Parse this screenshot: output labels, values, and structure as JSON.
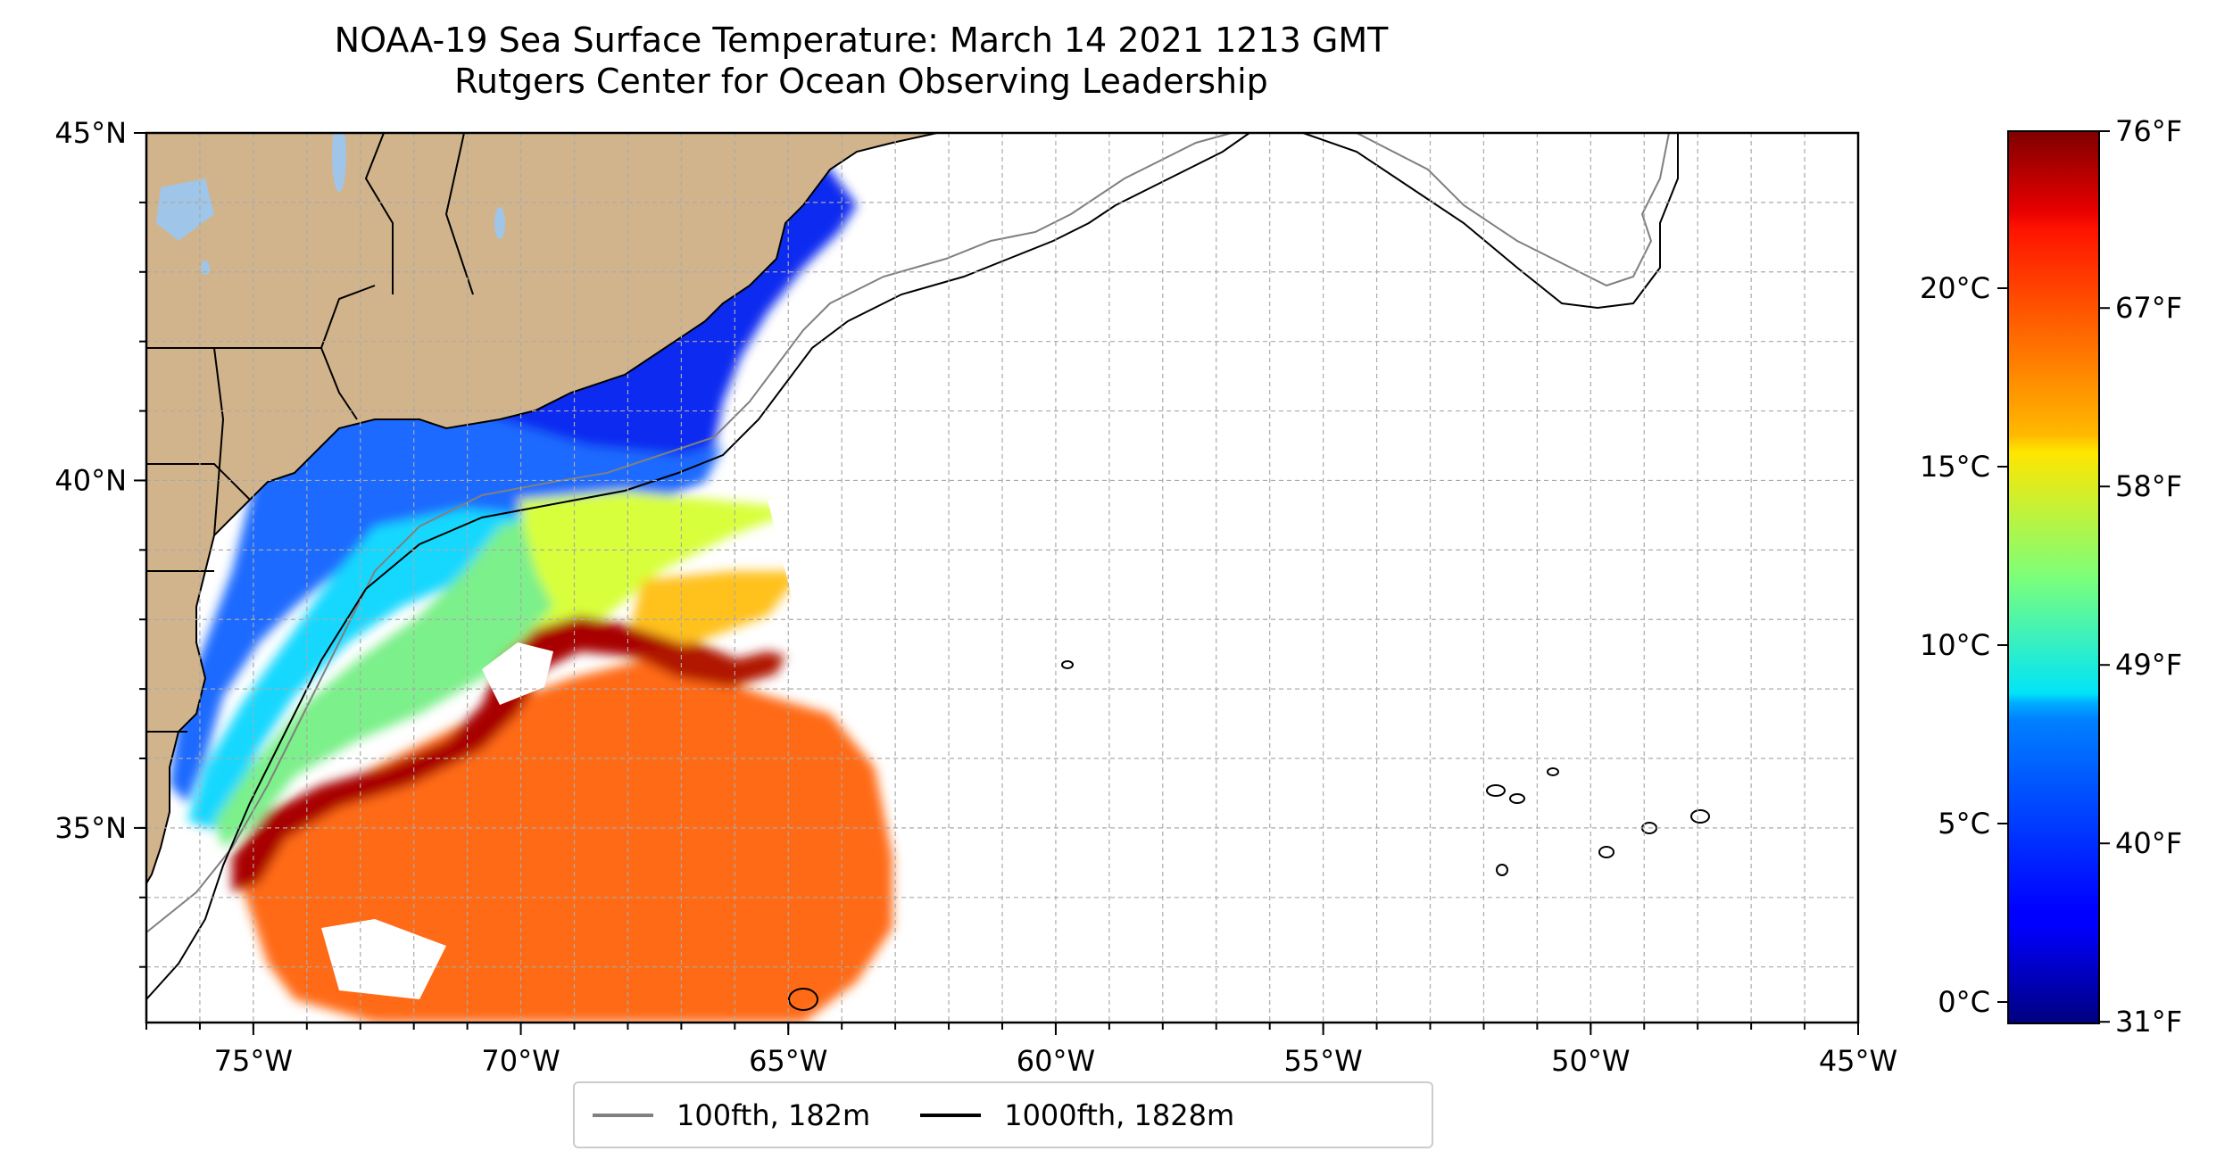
{
  "title_line1": "NOAA-19 Sea Surface Temperature: March 14 2021 1213 GMT",
  "title_line2": "Rutgers Center for Ocean Observing Leadership",
  "map": {
    "projection": "PlateCarree",
    "lon_range": [
      -77,
      -45
    ],
    "lat_range": [
      32.2,
      45
    ],
    "x_ticks": [
      "75°W",
      "70°W",
      "65°W",
      "60°W",
      "55°W",
      "50°W",
      "45°W"
    ],
    "x_tick_values": [
      -75,
      -70,
      -65,
      -60,
      -55,
      -50,
      -45
    ],
    "y_ticks": [
      "35°N",
      "40°N",
      "45°N"
    ],
    "y_tick_values": [
      35,
      40,
      45
    ],
    "gridlines": true,
    "land_color": "#d2b48c",
    "lake_color": "#9fc5e8"
  },
  "colorbar": {
    "colormap": "jet",
    "celsius_range": [
      -0.6,
      24.4
    ],
    "celsius_ticks": [
      "0°C",
      "5°C",
      "10°C",
      "15°C",
      "20°C"
    ],
    "celsius_tick_values": [
      0,
      5,
      10,
      15,
      20
    ],
    "fahrenheit_ticks": [
      "31°F",
      "40°F",
      "49°F",
      "58°F",
      "67°F",
      "76°F"
    ],
    "fahrenheit_tick_values": [
      31,
      40,
      49,
      58,
      67,
      76
    ]
  },
  "legend": {
    "items": [
      {
        "label": "100fth, 182m",
        "color": "#808080"
      },
      {
        "label": "1000fth, 1828m",
        "color": "#000000"
      }
    ]
  }
}
